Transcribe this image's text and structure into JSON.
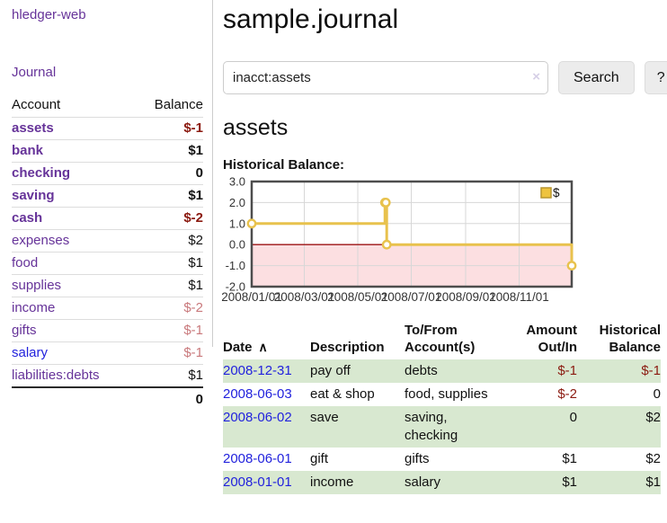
{
  "colors": {
    "purple": "#663399",
    "blue": "#2222dd",
    "red-strong": "#8b1a10",
    "red-soft": "#c9797c",
    "stripe": "#d8e8d0",
    "gold": "#e8c24d",
    "gold-fill": "#eec33f",
    "gold-border": "#b8962e",
    "pink": "#fcdfe1",
    "zero": "#9c1313",
    "grid": "#d7d7d7",
    "chart-border": "#4d4d4d",
    "divider": "#cccccc",
    "rowline": "#dddddd"
  },
  "sidebar": {
    "brand": "hledger-web",
    "journal_label": "Journal",
    "accounts": {
      "header_account": "Account",
      "header_balance": "Balance",
      "rows": [
        {
          "account": "assets",
          "balance": "$-1",
          "indent": 0,
          "bold": true
        },
        {
          "account": "bank",
          "balance": "$1",
          "indent": 1,
          "bold": true
        },
        {
          "account": "checking",
          "balance": "0",
          "indent": 2,
          "bold": true
        },
        {
          "account": "saving",
          "balance": "$1",
          "indent": 2,
          "bold": true
        },
        {
          "account": "cash",
          "balance": "$-2",
          "indent": 1,
          "bold": true
        },
        {
          "account": "expenses",
          "balance": "$2",
          "indent": 0,
          "bold": false
        },
        {
          "account": "food",
          "balance": "$1",
          "indent": 1,
          "bold": false
        },
        {
          "account": "supplies",
          "balance": "$1",
          "indent": 1,
          "bold": false
        },
        {
          "account": "income",
          "balance": "$-2",
          "indent": 0,
          "bold": false
        },
        {
          "account": "gifts",
          "balance": "$-1",
          "indent": 1,
          "bold": false
        },
        {
          "account": "salary",
          "balance": "$-1",
          "indent": 1,
          "bold": false,
          "link_color": "blue"
        },
        {
          "account": "liabilities:debts",
          "balance": "$1",
          "indent": 0,
          "bold": false
        }
      ],
      "total": "0"
    }
  },
  "header": {
    "title": "sample.journal"
  },
  "search": {
    "value": "inacct:assets",
    "clear_icon": "×",
    "button_label": "Search",
    "help_label": "?"
  },
  "account_page": {
    "heading": "assets",
    "chart_label": "Historical Balance:"
  },
  "chart_data": {
    "type": "line",
    "step": true,
    "title": "Historical Balance:",
    "series": [
      {
        "name": "$",
        "color": "#e8c24d",
        "x": [
          "2008-01-01",
          "2008-06-01",
          "2008-06-02",
          "2008-06-03",
          "2008-12-31"
        ],
        "y": [
          1,
          2,
          2,
          0,
          -1
        ]
      }
    ],
    "legend": {
      "position": "top-right",
      "label": "$"
    },
    "xlim": [
      "2008-01-01",
      "2008-12-31"
    ],
    "ylim": [
      -2,
      3
    ],
    "y_ticks": [
      {
        "value": 3,
        "label": "3.0"
      },
      {
        "value": 2,
        "label": "2.0"
      },
      {
        "value": 1,
        "label": "1.0"
      },
      {
        "value": 0,
        "label": "0.0"
      },
      {
        "value": -1,
        "label": "-1.0"
      },
      {
        "value": -2,
        "label": "-2.0"
      }
    ],
    "x_ticks": [
      {
        "date": "2008-01-01",
        "label": "2008/01/01"
      },
      {
        "date": "2008-03-01",
        "label": "2008/03/01"
      },
      {
        "date": "2008-05-01",
        "label": "2008/05/01"
      },
      {
        "date": "2008-07-01",
        "label": "2008/07/01"
      },
      {
        "date": "2008-09-01",
        "label": "2008/09/01"
      },
      {
        "date": "2008-11-01",
        "label": "2008/11/01"
      }
    ],
    "grid": true,
    "negative_region": true
  },
  "register": {
    "columns": [
      {
        "lines": [
          "Date"
        ],
        "sort_icon": "∧",
        "align": "left",
        "width": 97
      },
      {
        "lines": [
          "Description"
        ],
        "align": "left",
        "width": 105
      },
      {
        "lines": [
          "To/From",
          "Account(s)"
        ],
        "align": "left",
        "width": 110
      },
      {
        "lines": [
          "Amount",
          "Out/In"
        ],
        "align": "right",
        "width": 82
      },
      {
        "lines": [
          "Historical",
          "Balance"
        ],
        "align": "right",
        "width": 93
      }
    ],
    "rows": [
      {
        "date": "2008-12-31",
        "description": "pay off",
        "accounts": "debts",
        "amount": "$-1",
        "balance": "$-1"
      },
      {
        "date": "2008-06-03",
        "description": "eat & shop",
        "accounts": "food, supplies",
        "amount": "$-2",
        "balance": "0"
      },
      {
        "date": "2008-06-02",
        "description": "save",
        "accounts": "saving, checking",
        "amount": "0",
        "balance": "$2"
      },
      {
        "date": "2008-06-01",
        "description": "gift",
        "accounts": "gifts",
        "amount": "$1",
        "balance": "$2"
      },
      {
        "date": "2008-01-01",
        "description": "income",
        "accounts": "salary",
        "amount": "$1",
        "balance": "$1"
      }
    ]
  }
}
